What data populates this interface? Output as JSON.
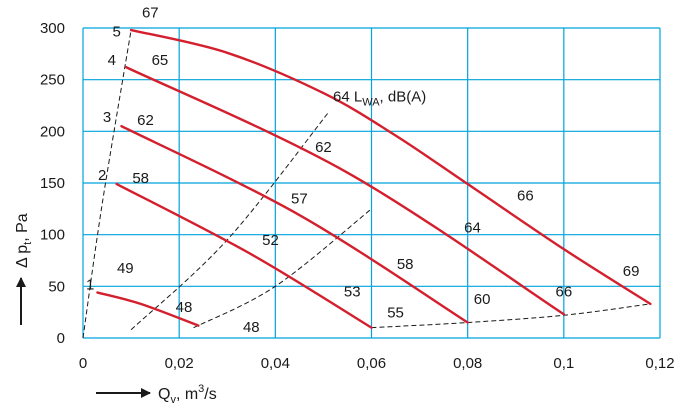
{
  "chart_data": {
    "type": "line",
    "xlim": [
      0,
      0.12
    ],
    "ylim": [
      0,
      300
    ],
    "grid": true,
    "colors": {
      "grid": "#00a3dc",
      "curve": "#d4202e",
      "dashed": "#1a1a1a"
    },
    "x_ticks": [
      {
        "value": 0,
        "label": "0"
      },
      {
        "value": 0.02,
        "label": "0,02"
      },
      {
        "value": 0.04,
        "label": "0,04"
      },
      {
        "value": 0.06,
        "label": "0,06"
      },
      {
        "value": 0.08,
        "label": "0,08"
      },
      {
        "value": 0.1,
        "label": "0,1"
      },
      {
        "value": 0.12,
        "label": "0,12"
      }
    ],
    "y_ticks": [
      {
        "value": 0,
        "label": "0"
      },
      {
        "value": 50,
        "label": "50"
      },
      {
        "value": 100,
        "label": "100"
      },
      {
        "value": 150,
        "label": "150"
      },
      {
        "value": 200,
        "label": "200"
      },
      {
        "value": 250,
        "label": "250"
      },
      {
        "value": 300,
        "label": "300"
      }
    ],
    "xlabel": {
      "main": "Q",
      "sub": "v",
      "rest": ", m",
      "sup": "3",
      "tail": "/s"
    },
    "ylabel": {
      "main": "Δ p",
      "sub": "t",
      "rest": ", Pa"
    },
    "series": [
      {
        "name": "1",
        "x": [
          0.003,
          0.012,
          0.024
        ],
        "y": [
          44,
          33,
          12
        ]
      },
      {
        "name": "2",
        "x": [
          0.007,
          0.035,
          0.06
        ],
        "y": [
          149,
          81,
          10
        ]
      },
      {
        "name": "3",
        "x": [
          0.008,
          0.045,
          0.08
        ],
        "y": [
          205,
          119,
          15
        ]
      },
      {
        "name": "4",
        "x": [
          0.009,
          0.055,
          0.1
        ],
        "y": [
          262,
          160,
          23
        ]
      },
      {
        "name": "5",
        "x": [
          0.01,
          0.03,
          0.05,
          0.065,
          0.08,
          0.1,
          0.118
        ],
        "y": [
          298,
          276,
          237,
          196,
          149,
          86,
          33
        ]
      }
    ],
    "dashed_lines": [
      {
        "x": [
          0,
          0.004,
          0.01
        ],
        "y": [
          0,
          130,
          298
        ]
      },
      {
        "x": [
          0.01,
          0.03,
          0.051
        ],
        "y": [
          8,
          95,
          218
        ]
      },
      {
        "x": [
          0.023,
          0.04,
          0.06
        ],
        "y": [
          10,
          50,
          125
        ]
      },
      {
        "x": [
          0.06,
          0.08,
          0.1,
          0.118
        ],
        "y": [
          10,
          15,
          22,
          33
        ]
      }
    ],
    "curve_labels": [
      {
        "text": "1",
        "x": 0.0015,
        "y": 47
      },
      {
        "text": "2",
        "x": 0.004,
        "y": 153
      },
      {
        "text": "3",
        "x": 0.005,
        "y": 209
      },
      {
        "text": "4",
        "x": 0.006,
        "y": 264
      },
      {
        "text": "5",
        "x": 0.007,
        "y": 292
      }
    ],
    "annotations": [
      {
        "text": "67",
        "x": 0.014,
        "y": 310
      },
      {
        "text": "65",
        "x": 0.016,
        "y": 264
      },
      {
        "text": "62",
        "x": 0.013,
        "y": 206
      },
      {
        "text": "58",
        "x": 0.012,
        "y": 150
      },
      {
        "text": "49",
        "x": 0.0088,
        "y": 63
      },
      {
        "text": "48",
        "x": 0.021,
        "y": 25
      },
      {
        "text": "48",
        "x": 0.035,
        "y": 6
      },
      {
        "text": "52",
        "x": 0.039,
        "y": 90
      },
      {
        "text": "57",
        "x": 0.045,
        "y": 130
      },
      {
        "text": "62",
        "x": 0.05,
        "y": 180
      },
      {
        "text": "53",
        "x": 0.056,
        "y": 40
      },
      {
        "text": "55",
        "x": 0.065,
        "y": 20
      },
      {
        "text": "58",
        "x": 0.067,
        "y": 67
      },
      {
        "text": "60",
        "x": 0.083,
        "y": 33
      },
      {
        "text": "64",
        "x": 0.081,
        "y": 102
      },
      {
        "text": "66",
        "x": 0.1,
        "y": 40
      },
      {
        "text": "66",
        "x": 0.092,
        "y": 133
      },
      {
        "text": "69",
        "x": 0.114,
        "y": 60
      }
    ],
    "lwa_label": {
      "text": "64 L",
      "sub": "WA",
      "tail": ", dB(A)",
      "x": 0.052,
      "y": 229
    }
  }
}
